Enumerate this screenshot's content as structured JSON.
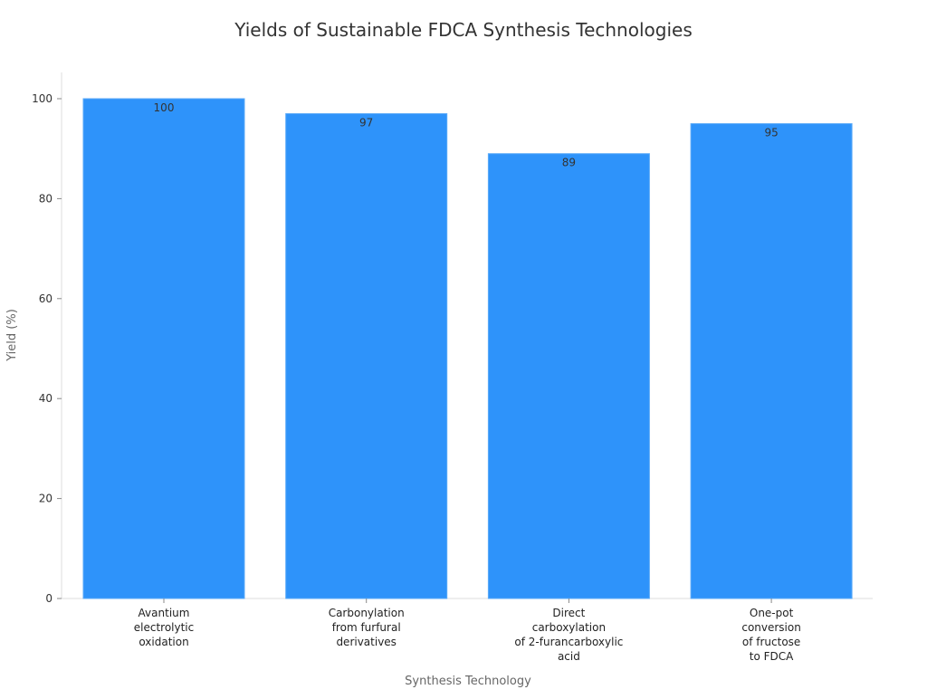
{
  "chart_data": {
    "type": "bar",
    "title": "Yields of Sustainable FDCA Synthesis Technologies",
    "xlabel": "Synthesis Technology",
    "ylabel": "Yield (%)",
    "categories": [
      [
        "Avantium",
        "electrolytic",
        "oxidation"
      ],
      [
        "Carbonylation",
        "from furfural",
        "derivatives"
      ],
      [
        "Direct",
        "carboxylation",
        "of 2-furancarboxylic",
        "acid"
      ],
      [
        "One-pot",
        "conversion",
        "of fructose",
        "to FDCA"
      ]
    ],
    "values": [
      100,
      97,
      89,
      95
    ],
    "data_labels": [
      "100",
      "97",
      "89",
      "95"
    ],
    "ylim": [
      0,
      105
    ],
    "yticks": [
      0,
      20,
      40,
      60,
      80,
      100
    ],
    "grid": false,
    "bar_color": "#2E93FA"
  }
}
